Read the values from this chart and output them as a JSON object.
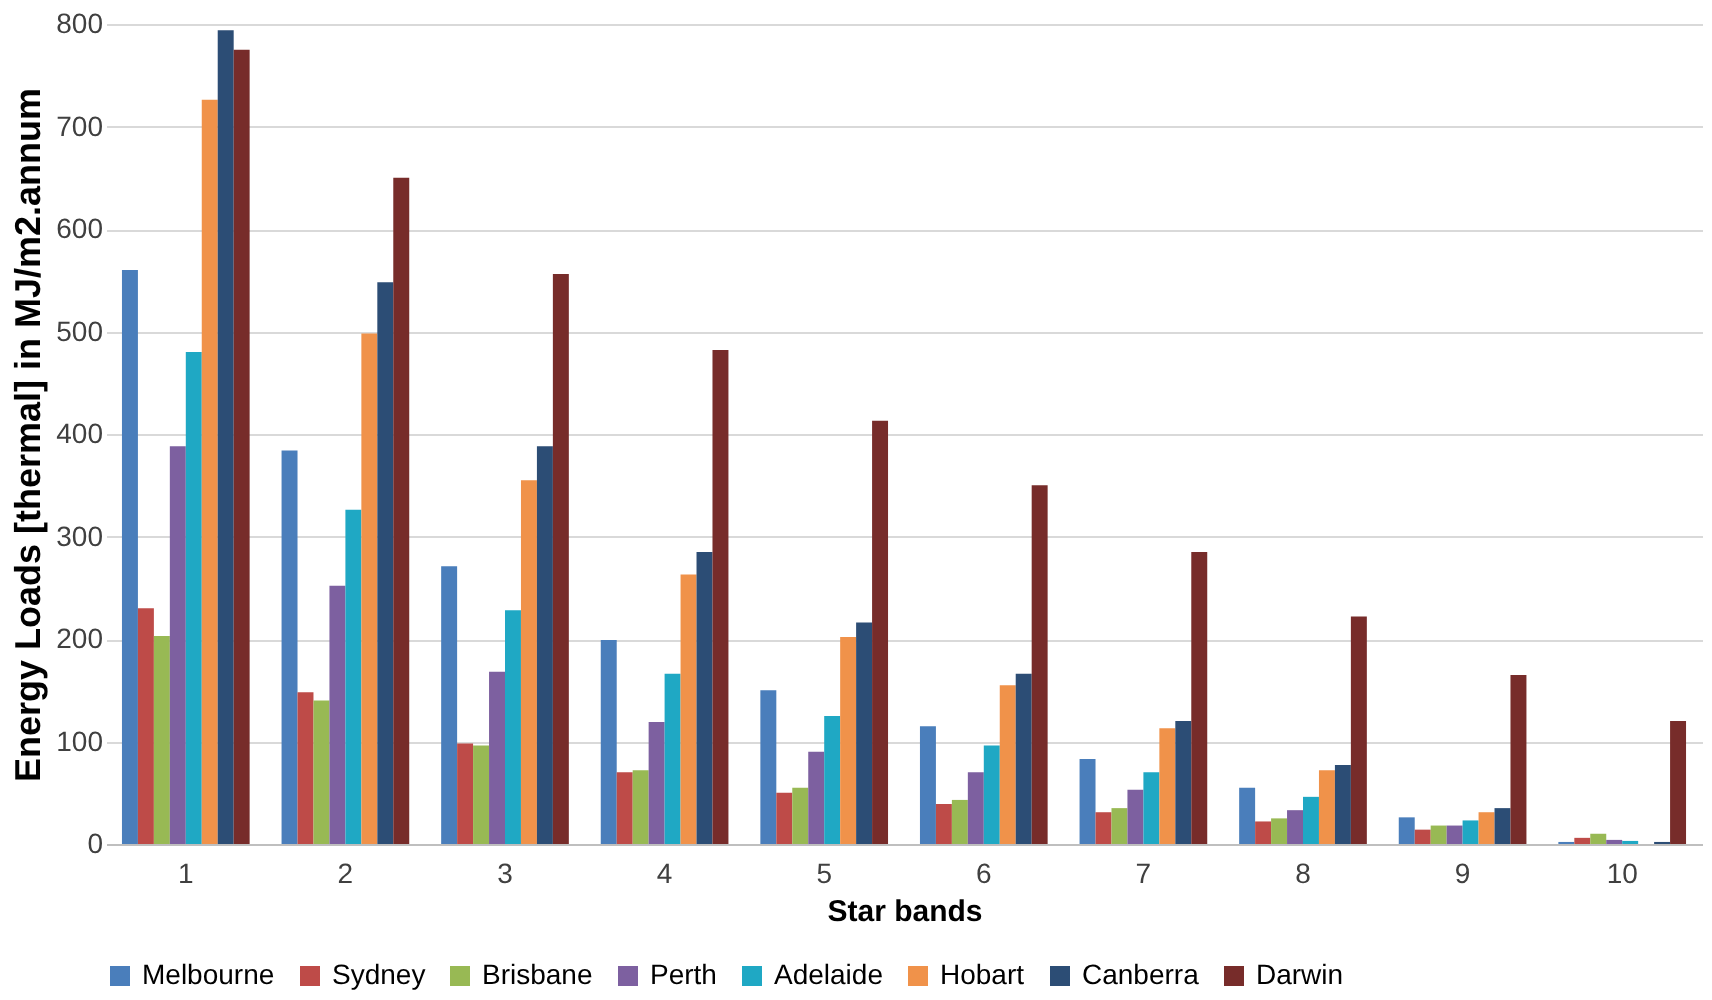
{
  "chart_data": {
    "type": "bar",
    "xlabel": "Star bands",
    "ylabel": "Energy Loads [thermal] in MJ/m2.annum",
    "categories": [
      "1",
      "2",
      "3",
      "4",
      "5",
      "6",
      "7",
      "8",
      "9",
      "10"
    ],
    "series": [
      {
        "name": "Melbourne",
        "color": "#4a7ebb",
        "values": [
          560,
          384,
          271,
          199,
          150,
          115,
          83,
          55,
          26,
          2
        ]
      },
      {
        "name": "Sydney",
        "color": "#be4b48",
        "values": [
          230,
          148,
          98,
          70,
          50,
          39,
          31,
          22,
          14,
          6
        ]
      },
      {
        "name": "Brisbane",
        "color": "#98b954",
        "values": [
          203,
          140,
          96,
          72,
          55,
          43,
          35,
          25,
          18,
          10
        ]
      },
      {
        "name": "Perth",
        "color": "#7d60a0",
        "values": [
          388,
          252,
          168,
          119,
          90,
          70,
          53,
          33,
          18,
          4
        ]
      },
      {
        "name": "Adelaide",
        "color": "#1fa8c4",
        "values": [
          480,
          326,
          228,
          166,
          125,
          96,
          70,
          46,
          23,
          3
        ]
      },
      {
        "name": "Hobart",
        "color": "#f0924a",
        "values": [
          726,
          498,
          355,
          263,
          202,
          155,
          113,
          72,
          31,
          null
        ]
      },
      {
        "name": "Canberra",
        "color": "#2c4d75",
        "values": [
          794,
          548,
          388,
          285,
          216,
          166,
          120,
          77,
          35,
          2
        ]
      },
      {
        "name": "Darwin",
        "color": "#772c2a",
        "values": [
          775,
          650,
          556,
          482,
          413,
          350,
          285,
          222,
          165,
          120
        ]
      }
    ],
    "ylim": [
      0,
      800
    ],
    "yticks": [
      0,
      100,
      200,
      300,
      400,
      500,
      600,
      700,
      800
    ],
    "grid": "y",
    "legend": "bottom"
  }
}
